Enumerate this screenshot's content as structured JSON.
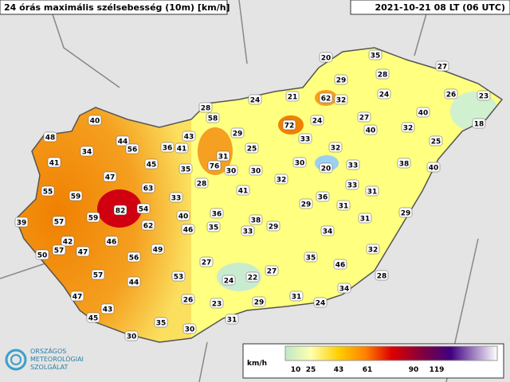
{
  "header": {
    "title": "24 órás maximális szélsebesség (10m) [km/h]",
    "date": "2021-10-21 08 LT (06 UTC)"
  },
  "stations": [
    20,
    35,
    27,
    29,
    28,
    24,
    21,
    62,
    32,
    24,
    26,
    23,
    28,
    58,
    72,
    24,
    27,
    40,
    18,
    40,
    43,
    29,
    33,
    40,
    32,
    48,
    44,
    36,
    41,
    25,
    32,
    25,
    34,
    56,
    31,
    30,
    20,
    33,
    38,
    40,
    41,
    45,
    76,
    30,
    35,
    30,
    47,
    28,
    32,
    33,
    55,
    63,
    41,
    31,
    36,
    59,
    33,
    29,
    31,
    29,
    82,
    54,
    40,
    36,
    38,
    31,
    39,
    57,
    59,
    62,
    46,
    35,
    33,
    29,
    34,
    42,
    46,
    47,
    49,
    57,
    50,
    56,
    35,
    46,
    32,
    27,
    57,
    53,
    24,
    22,
    27,
    28,
    44,
    34,
    47,
    26,
    23,
    31,
    24,
    43,
    29,
    45,
    35,
    31,
    30,
    30
  ],
  "legend": {
    "unit": "km/h",
    "ticks": [
      "10",
      "25",
      "43",
      "61",
      "90",
      "119"
    ]
  },
  "logo": {
    "line1": "ORSZÁGOS",
    "line2": "METEOROLÓGIAI",
    "line3": "SZOLGÁLAT"
  }
}
